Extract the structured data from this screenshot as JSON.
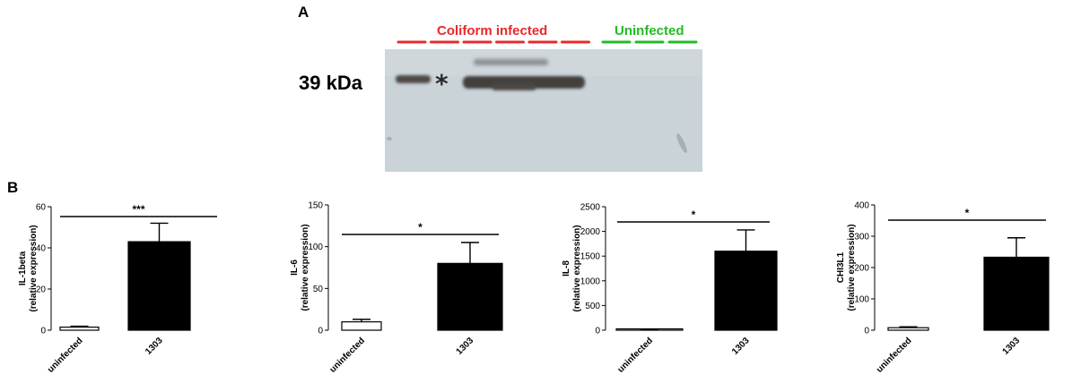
{
  "figure": {
    "panel_a_label": "A",
    "panel_b_label": "B"
  },
  "blot": {
    "group_infected_label": "Coliform infected",
    "group_uninfected_label": "Uninfected",
    "marker_label": "39 kDa",
    "asterisk": "*",
    "infected_color": "#e8282b",
    "uninfected_color": "#22bb22",
    "infected_lane_count": 6,
    "uninfected_lane_count": 3
  },
  "chart_data": [
    {
      "type": "bar",
      "categories": [
        "uninfected",
        "1303"
      ],
      "values": [
        1.5,
        43
      ],
      "errors": [
        0.4,
        9
      ],
      "ylabel_line1": "IL-1beta",
      "ylabel_line2": "(relative expression)",
      "ylim": [
        0,
        60
      ],
      "yticks": [
        0,
        20,
        40,
        60
      ],
      "significance": "***",
      "bar_fills": [
        "#ffffff",
        "#000000"
      ]
    },
    {
      "type": "bar",
      "categories": [
        "uninfected",
        "1303"
      ],
      "values": [
        10,
        80
      ],
      "errors": [
        3,
        25
      ],
      "ylabel_line1": "IL-6",
      "ylabel_line2": "(relative expression)",
      "ylim": [
        0,
        150
      ],
      "yticks": [
        0,
        50,
        100,
        150
      ],
      "significance": "*",
      "bar_fills": [
        "#ffffff",
        "#000000"
      ]
    },
    {
      "type": "bar",
      "categories": [
        "uninfected",
        "1303"
      ],
      "values": [
        10,
        1600
      ],
      "errors": [
        5,
        430
      ],
      "ylabel_line1": "IL-8",
      "ylabel_line2": "(relative expression)",
      "ylim": [
        0,
        2500
      ],
      "yticks": [
        0,
        500,
        1000,
        1500,
        2000,
        2500
      ],
      "significance": "*",
      "bar_fills": [
        "#ffffff",
        "#000000"
      ]
    },
    {
      "type": "bar",
      "categories": [
        "uninfected",
        "1303"
      ],
      "values": [
        8,
        233
      ],
      "errors": [
        3,
        62
      ],
      "ylabel_line1": "CHI3L1",
      "ylabel_line2": "(relative expression)",
      "ylim": [
        0,
        400
      ],
      "yticks": [
        0,
        100,
        200,
        300,
        400
      ],
      "significance": "*",
      "bar_fills": [
        "#ffffff",
        "#000000"
      ]
    }
  ]
}
